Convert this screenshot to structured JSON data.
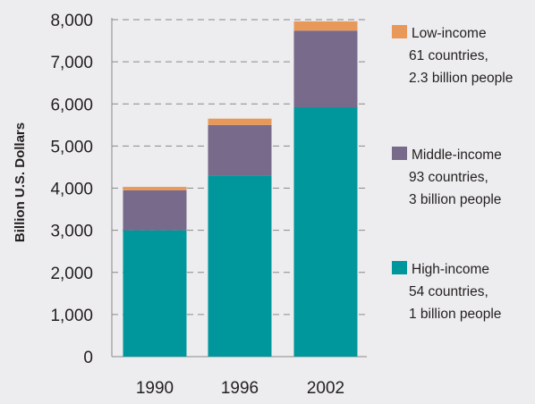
{
  "chart_data": {
    "type": "bar",
    "stacked": true,
    "categories": [
      "1990",
      "1996",
      "2002"
    ],
    "series": [
      {
        "name": "High-income",
        "values": [
          3000,
          4300,
          5920
        ],
        "color": "#00979c",
        "legend_lines": [
          "High-income",
          "54 countries,",
          "1 billion people"
        ]
      },
      {
        "name": "Middle-income",
        "values": [
          950,
          1200,
          1820
        ],
        "color": "#776a8b",
        "legend_lines": [
          "Middle-income",
          "93 countries,",
          "3 billion people"
        ]
      },
      {
        "name": "Low-income",
        "values": [
          80,
          150,
          220
        ],
        "color": "#e8995a",
        "legend_lines": [
          "Low-income",
          "61 countries,",
          "2.3 billion people"
        ]
      }
    ],
    "ylabel": "Billion U.S. Dollars",
    "xlabel": "",
    "ylim": [
      0,
      8000
    ],
    "yticks": [
      "0",
      "1,000",
      "2,000",
      "3,000",
      "4,000",
      "5,000",
      "6,000",
      "7,000",
      "8,000"
    ],
    "grid": true,
    "legend_position": "right"
  }
}
